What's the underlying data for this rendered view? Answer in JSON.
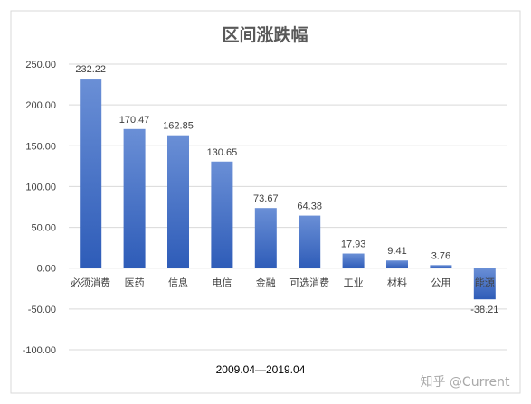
{
  "chart_data": {
    "type": "bar",
    "title": "区间涨跌幅",
    "xlabel": "2009.04—2019.04",
    "ylabel": "",
    "categories": [
      "必须消费",
      "医药",
      "信息",
      "电信",
      "金融",
      "可选消费",
      "工业",
      "材料",
      "公用",
      "能源"
    ],
    "values": [
      232.22,
      170.47,
      162.85,
      130.65,
      73.67,
      64.38,
      17.93,
      9.41,
      3.76,
      -38.21
    ],
    "data_labels": [
      "232.22",
      "170.47",
      "162.85",
      "130.65",
      "73.67",
      "64.38",
      "17.93",
      "9.41",
      "3.76",
      "-38.21"
    ],
    "ylim": [
      -100,
      250
    ],
    "yticks": [
      250,
      200,
      150,
      100,
      50,
      0,
      -50,
      -100
    ],
    "ytick_labels": [
      "250.00",
      "200.00",
      "150.00",
      "100.00",
      "50.00",
      "0.00",
      "-50.00",
      "-100.00"
    ],
    "grid": true,
    "legend": "none",
    "colors": {
      "bar_top": "#6a8fd6",
      "bar_bottom": "#2e5cb8",
      "grid": "#d9d9d9",
      "border": "#d9d9d9",
      "title": "#595959",
      "text": "#404040"
    }
  },
  "watermark": "知乎 @Current"
}
